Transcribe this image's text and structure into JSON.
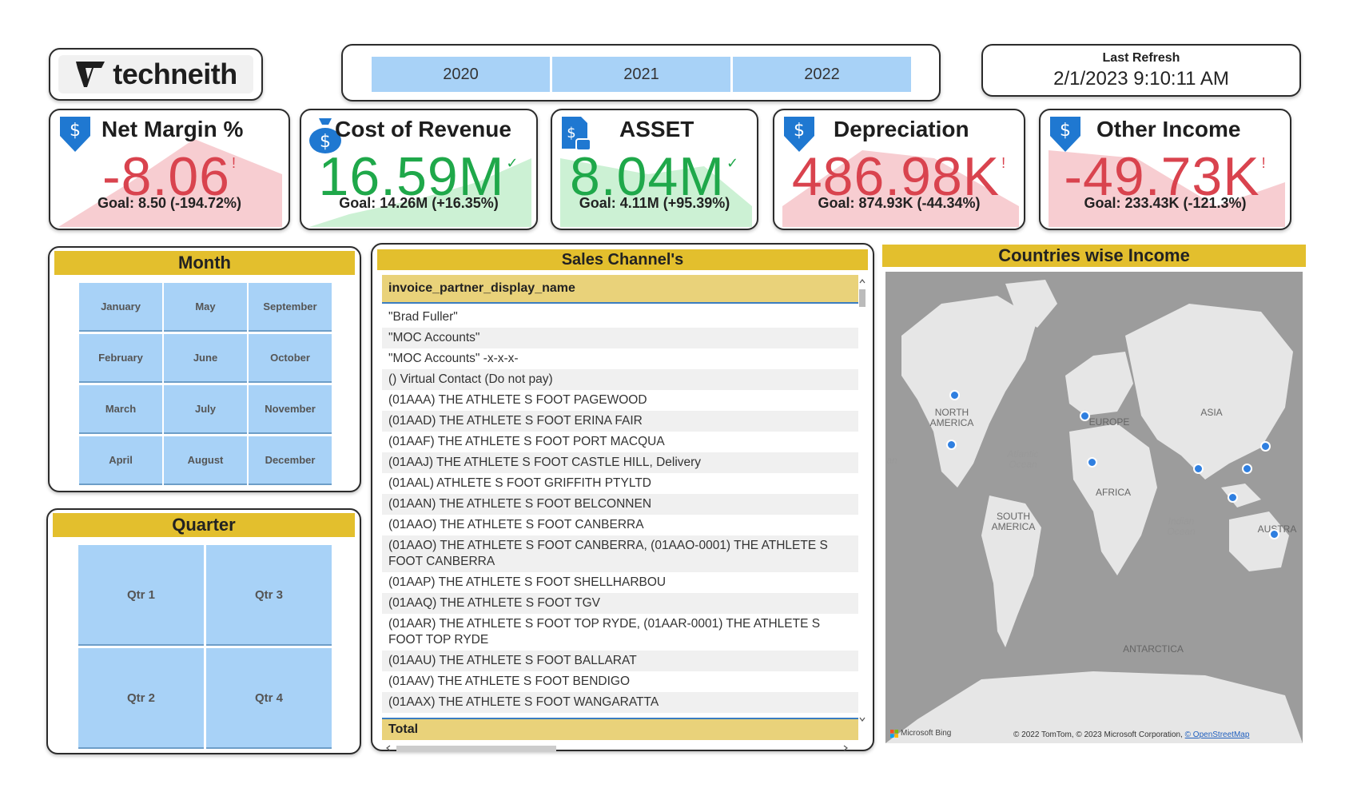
{
  "logo": {
    "text": "techneith"
  },
  "years": [
    "2020",
    "2021",
    "2022"
  ],
  "refresh": {
    "label": "Last Refresh",
    "value": "2/1/2023 9:10:11 AM"
  },
  "kpis": [
    {
      "title": "Net Margin %",
      "value": "-8.06",
      "mark": "!",
      "goal": "Goal: 8.50 (-194.72%)",
      "status": "negative",
      "icon": "dollar-down-icon"
    },
    {
      "title": "Cost of Revenue",
      "value": "16.59M",
      "mark": "✓",
      "goal": "Goal: 14.26M (+16.35%)",
      "status": "positive",
      "icon": "money-bag-icon"
    },
    {
      "title": "ASSET",
      "value": "8.04M",
      "mark": "✓",
      "goal": "Goal: 4.11M (+95.39%)",
      "status": "positive",
      "icon": "asset-document-icon"
    },
    {
      "title": "Depreciation",
      "value": "486.98K",
      "mark": "!",
      "goal": "Goal: 874.93K (-44.34%)",
      "status": "negative",
      "icon": "dollar-down-icon"
    },
    {
      "title": "Other Income",
      "value": "-49.73K",
      "mark": "!",
      "goal": "Goal: 233.43K (-121.3%)",
      "status": "negative",
      "icon": "dollar-down-icon"
    }
  ],
  "month": {
    "title": "Month",
    "items": [
      "January",
      "May",
      "September",
      "February",
      "June",
      "October",
      "March",
      "July",
      "November",
      "April",
      "August",
      "December"
    ]
  },
  "quarter": {
    "title": "Quarter",
    "items": [
      "Qtr 1",
      "Qtr 3",
      "Qtr 2",
      "Qtr 4"
    ]
  },
  "sales": {
    "title": "Sales Channel's",
    "column": "invoice_partner_display_name",
    "rows": [
      "\"Brad Fuller\"",
      "\"MOC Accounts\"",
      "\"MOC Accounts\" -x-x-x-",
      "() Virtual Contact (Do not pay)",
      "(01AAA) THE ATHLETE S FOOT PAGEWOOD",
      "(01AAD) THE ATHLETE S FOOT ERINA FAIR",
      "(01AAF) THE ATHLETE S FOOT PORT MACQUA",
      "(01AAJ) THE ATHLETE S FOOT CASTLE HILL, Delivery",
      "(01AAL) ATHLETE S FOOT GRIFFITH PTYLTD",
      "(01AAN) THE ATHLETE S FOOT BELCONNEN",
      "(01AAO) THE ATHLETE S FOOT CANBERRA",
      "(01AAO) THE ATHLETE S FOOT CANBERRA, (01AAO-0001) THE ATHLETE S FOOT CANBERRA",
      "(01AAP) THE ATHLETE S FOOT SHELLHARBOU",
      "(01AAQ) THE ATHLETE S FOOT TGV",
      "(01AAR) THE ATHLETE S FOOT TOP RYDE, (01AAR-0001) THE ATHLETE S FOOT TOP RYDE",
      "(01AAU) THE ATHLETE S FOOT BALLARAT",
      "(01AAV) THE ATHLETE S FOOT BENDIGO",
      "(01AAX) THE ATHLETE S FOOT WANGARATTA"
    ],
    "total": "Total"
  },
  "map": {
    "title": "Countries wise Income",
    "continents": [
      "NORTH AMERICA",
      "EUROPE",
      "ASIA",
      "AFRICA",
      "SOUTH AMERICA",
      "AUSTRA",
      "ANTARCTICA"
    ],
    "oceans": [
      "Atlantic Ocean",
      "Indian Ocean",
      "an"
    ],
    "bing": "Microsoft Bing",
    "copyright": "© 2022 TomTom, © 2023 Microsoft Corporation,",
    "osm": "© OpenStreetMap"
  },
  "colors": {
    "accent_yellow": "#e3bf2d",
    "slicer_blue": "#a8d2f7",
    "negative": "#d9434e",
    "positive": "#1fa84a",
    "map_land": "#e6e6e6",
    "map_sea": "#9c9c9c",
    "dot": "#2f7fe0"
  }
}
